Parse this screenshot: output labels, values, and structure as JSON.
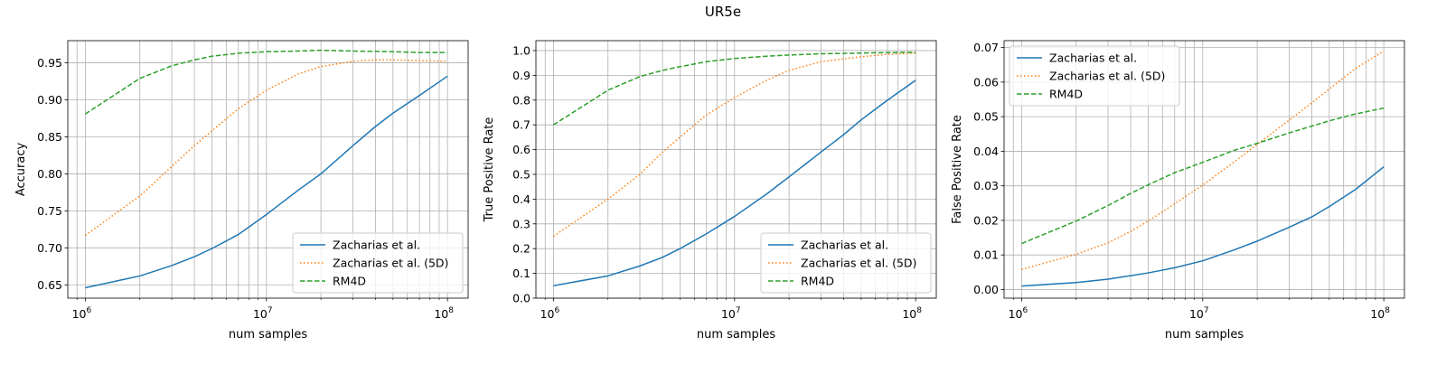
{
  "figure": {
    "suptitle": "UR5e"
  },
  "chart_data": [
    {
      "type": "line",
      "xscale": "log",
      "xlim": [
        800000,
        130000000
      ],
      "ylim": [
        0.632,
        0.98
      ],
      "xticks": [
        1000000,
        10000000,
        100000000
      ],
      "xtick_labels": [
        [
          "10",
          "6"
        ],
        [
          "10",
          "7"
        ],
        [
          "10",
          "8"
        ]
      ],
      "yticks": [
        0.65,
        0.7,
        0.75,
        0.8,
        0.85,
        0.9,
        0.95
      ],
      "ytick_labels": [
        "0.65",
        "0.70",
        "0.75",
        "0.80",
        "0.85",
        "0.90",
        "0.95"
      ],
      "xlabel": "num samples",
      "ylabel": "Accuracy",
      "grid": true,
      "legend_position": "lower-right",
      "series": [
        {
          "name": "Zacharias et al.",
          "color": "#1f77b4",
          "dash": "solid",
          "x": [
            1000000,
            2000000,
            3000000,
            4000000,
            5000000,
            7000000,
            10000000,
            15000000,
            20000000,
            30000000,
            40000000,
            50000000,
            70000000,
            100000000
          ],
          "y": [
            0.646,
            0.662,
            0.676,
            0.688,
            0.699,
            0.718,
            0.745,
            0.778,
            0.8,
            0.838,
            0.864,
            0.882,
            0.906,
            0.932
          ]
        },
        {
          "name": "Zacharias et al. (5D)",
          "color": "#ff7f0e",
          "dash": "dotted",
          "x": [
            1000000,
            2000000,
            3000000,
            4000000,
            5000000,
            7000000,
            10000000,
            15000000,
            20000000,
            30000000,
            40000000,
            50000000,
            70000000,
            100000000
          ],
          "y": [
            0.717,
            0.77,
            0.81,
            0.838,
            0.858,
            0.888,
            0.913,
            0.935,
            0.945,
            0.952,
            0.954,
            0.954,
            0.953,
            0.952
          ]
        },
        {
          "name": "RM4D",
          "color": "#2ca02c",
          "dash": "dashed",
          "x": [
            1000000,
            2000000,
            3000000,
            4000000,
            5000000,
            7000000,
            10000000,
            15000000,
            20000000,
            30000000,
            50000000,
            70000000,
            100000000
          ],
          "y": [
            0.881,
            0.929,
            0.946,
            0.954,
            0.959,
            0.963,
            0.965,
            0.966,
            0.967,
            0.966,
            0.965,
            0.964,
            0.964
          ]
        }
      ]
    },
    {
      "type": "line",
      "xscale": "log",
      "xlim": [
        800000,
        130000000
      ],
      "ylim": [
        0.0,
        1.04
      ],
      "xticks": [
        1000000,
        10000000,
        100000000
      ],
      "xtick_labels": [
        [
          "10",
          "6"
        ],
        [
          "10",
          "7"
        ],
        [
          "10",
          "8"
        ]
      ],
      "yticks": [
        0.0,
        0.1,
        0.2,
        0.3,
        0.4,
        0.5,
        0.6,
        0.7,
        0.8,
        0.9,
        1.0
      ],
      "ytick_labels": [
        "0.0",
        "0.1",
        "0.2",
        "0.3",
        "0.4",
        "0.5",
        "0.6",
        "0.7",
        "0.8",
        "0.9",
        "1.0"
      ],
      "xlabel": "num samples",
      "ylabel": "True Positive Rate",
      "grid": true,
      "legend_position": "lower-right",
      "series": [
        {
          "name": "Zacharias et al.",
          "color": "#1f77b4",
          "dash": "solid",
          "x": [
            1000000,
            2000000,
            3000000,
            4000000,
            5000000,
            7000000,
            10000000,
            15000000,
            20000000,
            30000000,
            40000000,
            50000000,
            70000000,
            100000000
          ],
          "y": [
            0.05,
            0.09,
            0.13,
            0.165,
            0.2,
            0.26,
            0.33,
            0.42,
            0.49,
            0.59,
            0.66,
            0.72,
            0.8,
            0.88
          ]
        },
        {
          "name": "Zacharias et al. (5D)",
          "color": "#ff7f0e",
          "dash": "dotted",
          "x": [
            1000000,
            2000000,
            3000000,
            4000000,
            5000000,
            7000000,
            10000000,
            15000000,
            20000000,
            30000000,
            50000000,
            70000000,
            100000000
          ],
          "y": [
            0.25,
            0.4,
            0.5,
            0.59,
            0.65,
            0.74,
            0.81,
            0.88,
            0.92,
            0.955,
            0.975,
            0.985,
            0.99
          ]
        },
        {
          "name": "RM4D",
          "color": "#2ca02c",
          "dash": "dashed",
          "x": [
            1000000,
            2000000,
            3000000,
            4000000,
            5000000,
            7000000,
            10000000,
            15000000,
            20000000,
            30000000,
            50000000,
            70000000,
            100000000
          ],
          "y": [
            0.7,
            0.84,
            0.895,
            0.92,
            0.935,
            0.955,
            0.968,
            0.977,
            0.982,
            0.987,
            0.99,
            0.992,
            0.993
          ]
        }
      ]
    },
    {
      "type": "line",
      "xscale": "log",
      "xlim": [
        800000,
        130000000
      ],
      "ylim": [
        -0.0025,
        0.072
      ],
      "xticks": [
        1000000,
        10000000,
        100000000
      ],
      "xtick_labels": [
        [
          "10",
          "6"
        ],
        [
          "10",
          "7"
        ],
        [
          "10",
          "8"
        ]
      ],
      "yticks": [
        0.0,
        0.01,
        0.02,
        0.03,
        0.04,
        0.05,
        0.06,
        0.07
      ],
      "ytick_labels": [
        "0.00",
        "0.01",
        "0.02",
        "0.03",
        "0.04",
        "0.05",
        "0.06",
        "0.07"
      ],
      "xlabel": "num samples",
      "ylabel": "False Positive Rate",
      "grid": true,
      "legend_position": "upper-left",
      "series": [
        {
          "name": "Zacharias et al.",
          "color": "#1f77b4",
          "dash": "solid",
          "x": [
            1000000,
            2000000,
            3000000,
            4000000,
            5000000,
            7000000,
            10000000,
            15000000,
            20000000,
            30000000,
            40000000,
            50000000,
            70000000,
            100000000
          ],
          "y": [
            0.001,
            0.002,
            0.003,
            0.004,
            0.0048,
            0.0063,
            0.0083,
            0.0115,
            0.014,
            0.018,
            0.021,
            0.024,
            0.029,
            0.0355
          ]
        },
        {
          "name": "Zacharias et al. (5D)",
          "color": "#ff7f0e",
          "dash": "dotted",
          "x": [
            1000000,
            2000000,
            3000000,
            4000000,
            5000000,
            7000000,
            10000000,
            15000000,
            20000000,
            30000000,
            40000000,
            50000000,
            70000000,
            100000000
          ],
          "y": [
            0.0058,
            0.0102,
            0.0135,
            0.0168,
            0.0198,
            0.0248,
            0.0302,
            0.037,
            0.042,
            0.049,
            0.054,
            0.058,
            0.064,
            0.069
          ]
        },
        {
          "name": "RM4D",
          "color": "#2ca02c",
          "dash": "dashed",
          "x": [
            1000000,
            2000000,
            3000000,
            4000000,
            5000000,
            7000000,
            10000000,
            15000000,
            20000000,
            30000000,
            50000000,
            70000000,
            100000000
          ],
          "y": [
            0.0133,
            0.0198,
            0.0243,
            0.0278,
            0.0303,
            0.0338,
            0.0368,
            0.0403,
            0.0423,
            0.0453,
            0.0488,
            0.0508,
            0.0525
          ]
        }
      ]
    }
  ]
}
